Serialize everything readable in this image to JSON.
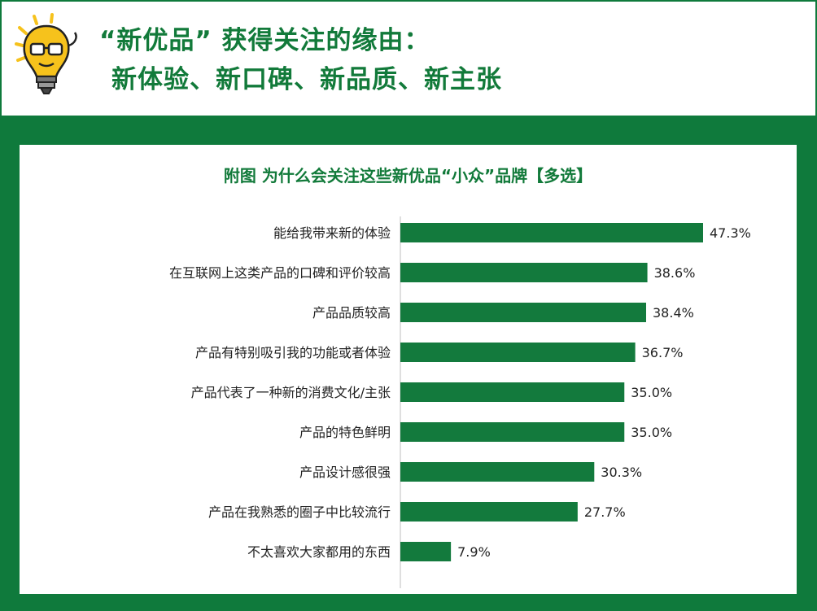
{
  "header": {
    "title_line_1": "“新优品” 获得关注的缘由：",
    "title_line_2": "新体验、新口碑、新品质、新主张"
  },
  "colors": {
    "brand_green": "#0f7a3c",
    "title_green": "#127a3a",
    "bar_green": "#137a3d",
    "bulb_yellow": "#f6c21c"
  },
  "icons": {
    "header_icon": "lightbulb-character-icon"
  },
  "chart_data": {
    "type": "bar",
    "orientation": "horizontal",
    "title": "附图 为什么会关注这些新优品“小众”品牌【多选】",
    "categories": [
      "能给我带来新的体验",
      "在互联网上这类产品的口碑和评价较高",
      "产品品质较高",
      "产品有特别吸引我的功能或者体验",
      "产品代表了一种新的消费文化/主张",
      "产品的特色鲜明",
      "产品设计感很强",
      "产品在我熟悉的圈子中比较流行",
      "不太喜欢大家都用的东西"
    ],
    "values": [
      47.3,
      38.6,
      38.4,
      36.7,
      35.0,
      35.0,
      30.3,
      27.7,
      7.9
    ],
    "value_labels": [
      "47.3%",
      "38.6%",
      "38.4%",
      "36.7%",
      "35.0%",
      "35.0%",
      "30.3%",
      "27.7%",
      "7.9%"
    ],
    "xlim": [
      0,
      47.3
    ],
    "xlabel": "",
    "ylabel": "",
    "grid": false,
    "legend": "none"
  }
}
